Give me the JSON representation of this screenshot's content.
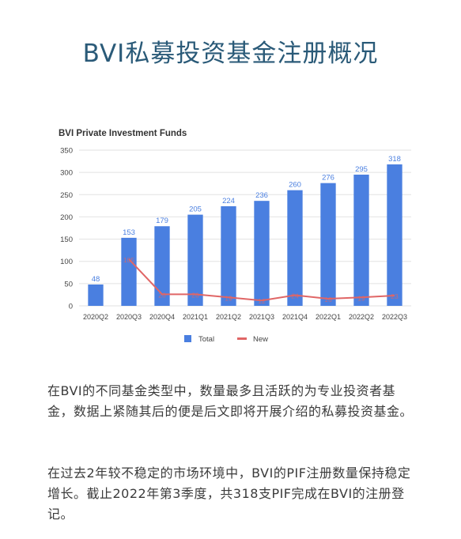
{
  "headline": "BVI私募投资基金注册概况",
  "paragraphs": [
    "在BVI的不同基金类型中，数量最多且活跃的为专业投资者基金，数据上紧随其后的便是后文即将开展介绍的私募投资基金。",
    "在过去2年较不稳定的市场环境中，BVI的PIF注册数量保持稳定增长。截止2022年第3季度，共318支PIF完成在BVI的注册登记。"
  ],
  "colors": {
    "total": "#4a7fe0",
    "new": "#e06666",
    "headline": "#2a5a78"
  },
  "chart_data": {
    "type": "bar",
    "title": "BVI Private Investment Funds",
    "categories": [
      "2020Q2",
      "2020Q3",
      "2020Q4",
      "2021Q1",
      "2021Q2",
      "2021Q3",
      "2021Q4",
      "2022Q1",
      "2022Q2",
      "2022Q3"
    ],
    "series": [
      {
        "name": "Total",
        "type": "bar",
        "values": [
          48,
          153,
          179,
          205,
          224,
          236,
          260,
          276,
          295,
          318
        ]
      },
      {
        "name": "New",
        "type": "line",
        "values": [
          null,
          105,
          26,
          26,
          19,
          12,
          24,
          16,
          19,
          23
        ]
      }
    ],
    "ylim": [
      0,
      350
    ],
    "yticks": [
      0,
      50,
      100,
      150,
      200,
      250,
      300,
      350
    ],
    "legend": "bottom",
    "grid": true
  }
}
